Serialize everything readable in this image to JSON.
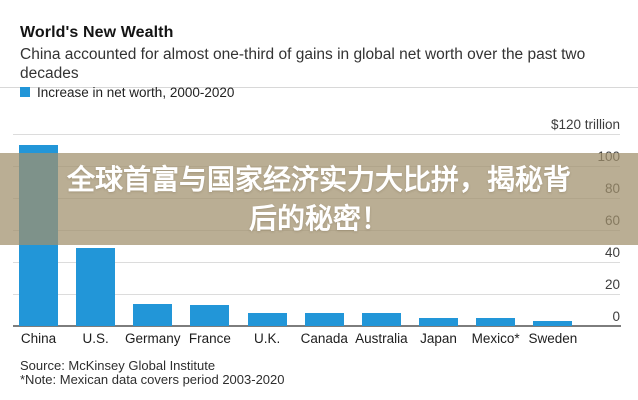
{
  "header": {
    "title": "World's New Wealth",
    "subtitle": "China accounted for almost one-third of gains in global net worth over the past two decades",
    "legend_label": "Increase in net worth, 2000-2020"
  },
  "overlay": {
    "line1": "全球首富与国家经济实力大比拼，揭秘背",
    "line2": "后的秘密！"
  },
  "footer": {
    "source": "Source: McKinsey Global Institute",
    "note": "*Note: Mexican data covers period 2003-2020"
  },
  "colors": {
    "bar_blue": "#2296d8",
    "overlay_tan": "rgba(160,144,108,0.73)",
    "gridline_gray": "#dcdcdc",
    "axis_gray": "#7d7d7d"
  },
  "chart_data": {
    "type": "bar",
    "title": "World's New Wealth",
    "subtitle": "China accounted for almost one-third of gains in global net worth over the past two decades",
    "legend": [
      "Increase in net worth, 2000-2020"
    ],
    "legend_position": "top-left",
    "unit": "trillion USD",
    "categories": [
      "China",
      "U.S.",
      "Germany",
      "France",
      "U.K.",
      "Canada",
      "Australia",
      "Japan",
      "Mexico*",
      "Sweden"
    ],
    "values": [
      113,
      49,
      14,
      13,
      8,
      8,
      8,
      5,
      5,
      3
    ],
    "ylim": [
      0,
      120
    ],
    "yticks": [
      120,
      100,
      80,
      60,
      40,
      20,
      0
    ],
    "ytick_labels": [
      "$120 trillion",
      "100",
      "80",
      "60",
      "40",
      "20",
      "0"
    ],
    "axis_side": "right",
    "grid": true,
    "xlabel": "",
    "ylabel": "",
    "source": "Source: McKinsey Global Institute",
    "note": "*Note: Mexican data covers period 2003-2020"
  }
}
